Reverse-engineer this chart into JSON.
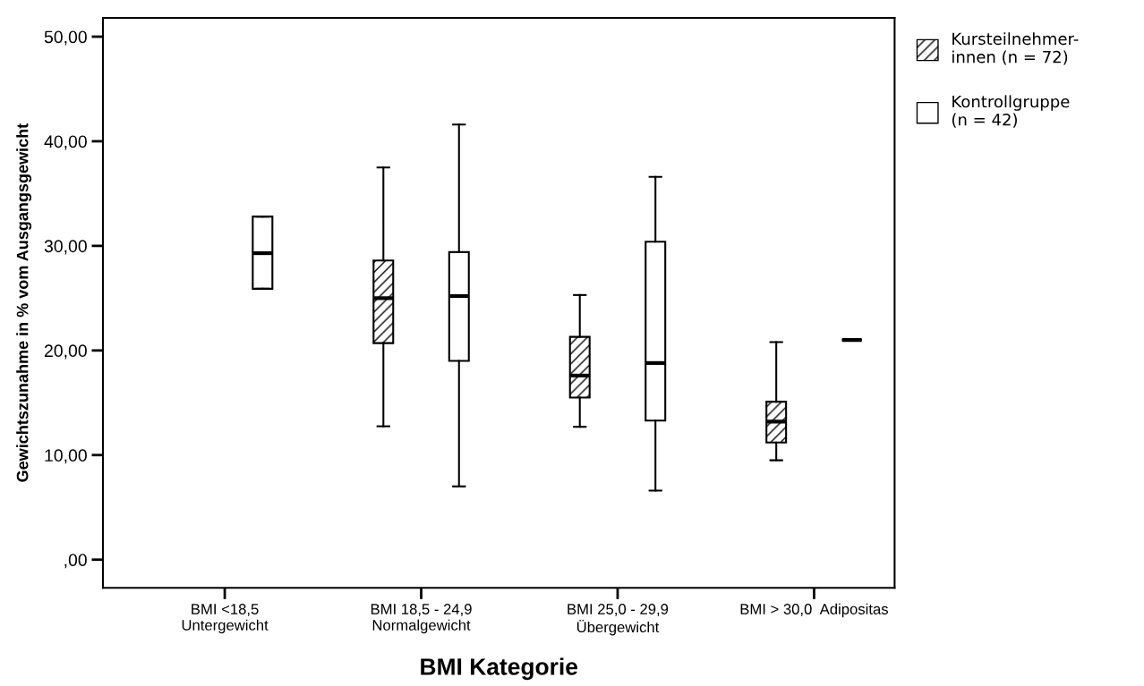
{
  "chart_data": {
    "type": "box",
    "xlabel": "BMI Kategorie",
    "ylabel": "Gewichtszunahme in % vom Ausgangsgewicht",
    "categories": [
      "BMI <18,5\nUntergewicht",
      "BMI 18,5 - 24,9\nNormalgewicht",
      "BMI 25,0 - 29,9\nÜbergewicht",
      "BMI > 30,0  Adipositas"
    ],
    "ylim": [
      -2.7,
      51.8
    ],
    "yticks": [
      {
        "value": 0,
        "label": ",00"
      },
      {
        "value": 10,
        "label": "10,00"
      },
      {
        "value": 20,
        "label": "20,00"
      },
      {
        "value": 30,
        "label": "30,00"
      },
      {
        "value": 40,
        "label": "40,00"
      },
      {
        "value": 50,
        "label": "50,00"
      }
    ],
    "legend": "top right",
    "grid": false,
    "series": [
      {
        "name": "Kursteilnehmer-\ninnen (n = 72)",
        "color": "#000000",
        "boxes": [
          null,
          {
            "low": 12.75,
            "q1": 20.7,
            "median": 25.0,
            "q3": 28.6,
            "high": 37.5
          },
          {
            "low": 12.7,
            "q1": 15.5,
            "median": 17.6,
            "q3": 21.3,
            "high": 25.3
          },
          {
            "low": 9.5,
            "q1": 11.2,
            "median": 13.2,
            "q3": 15.1,
            "high": 20.8
          }
        ]
      },
      {
        "name": "Kontrollgruppe\n(n = 42)",
        "color": "#000000",
        "boxes": [
          {
            "low": 25.9,
            "q1": 25.9,
            "median": 29.3,
            "q3": 32.8,
            "high": 32.8
          },
          {
            "low": 7.0,
            "q1": 19.0,
            "median": 25.2,
            "q3": 29.4,
            "high": 41.6
          },
          {
            "low": 6.6,
            "q1": 13.3,
            "median": 18.8,
            "q3": 30.4,
            "high": 36.6
          },
          {
            "low": 21.0,
            "q1": 21.0,
            "median": 21.0,
            "q3": 21.0,
            "high": 21.0
          }
        ]
      }
    ]
  }
}
